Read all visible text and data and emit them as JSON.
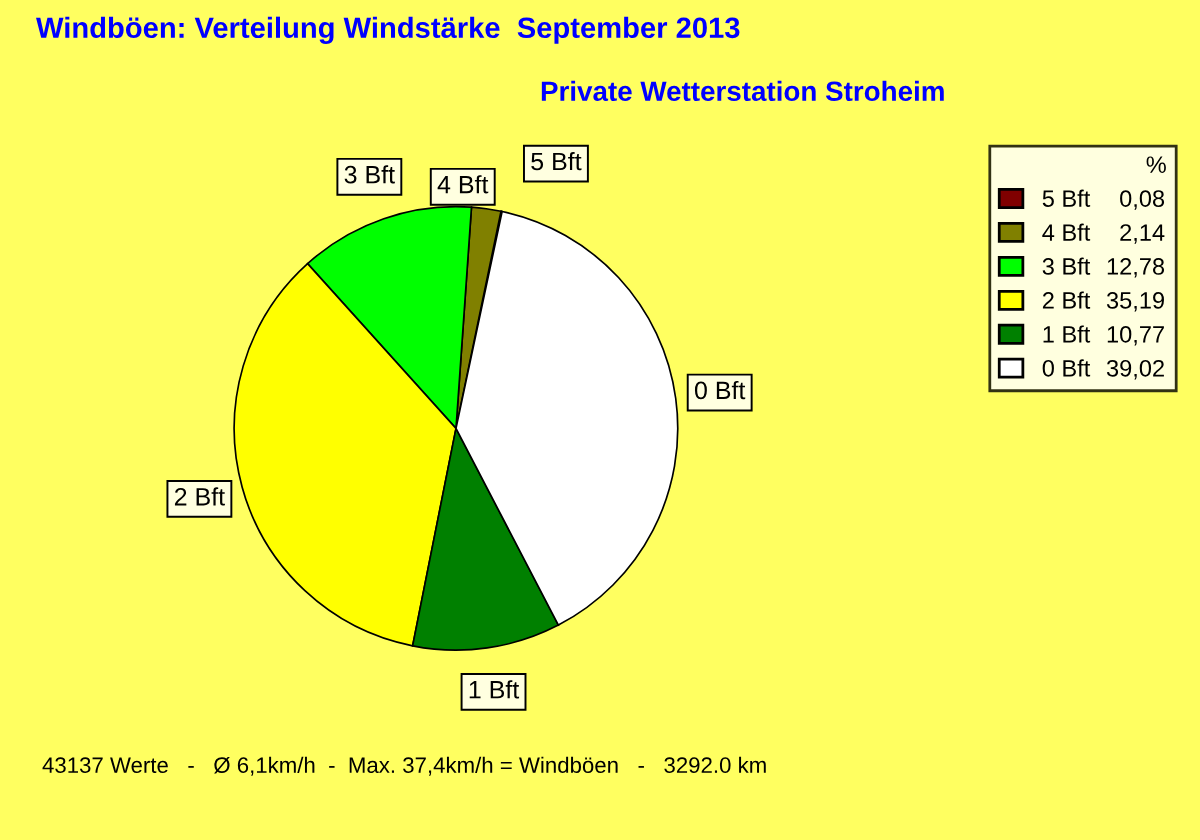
{
  "chart_data": {
    "type": "pie",
    "title": "Windböen: Verteilung Windstärke  September 2013",
    "subtitle": "Private Wetterstation Stroheim",
    "categories": [
      "5 Bft",
      "4 Bft",
      "3 Bft",
      "2 Bft",
      "1 Bft",
      "0 Bft"
    ],
    "values": [
      0.08,
      2.14,
      12.78,
      35.19,
      10.77,
      39.02
    ],
    "value_labels": [
      "0,08",
      "2,14",
      "12,78",
      "35,19",
      "10,77",
      "39,02"
    ],
    "colors": [
      "#800000",
      "#808000",
      "#00ff00",
      "#ffff00",
      "#008000",
      "#ffffff"
    ],
    "legend": "top right",
    "legend_title": "%",
    "annotations": [
      "43137 Werte   -   Ø 6,1km/h  -  Max. 37,4km/h = Windböen   -   3292.0 km"
    ]
  }
}
